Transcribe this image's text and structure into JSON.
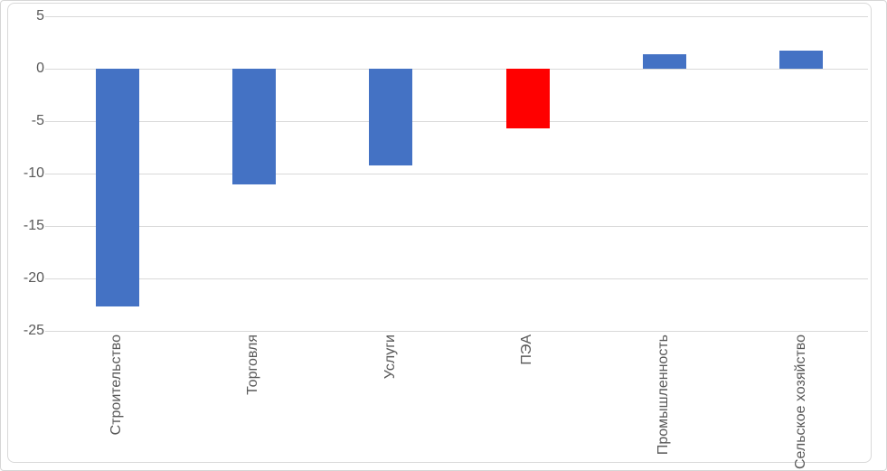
{
  "chart_data": {
    "type": "bar",
    "title": "",
    "xlabel": "",
    "ylabel": "",
    "categories": [
      "Строительство",
      "Торговля",
      "Услуги",
      "ПЭА",
      "Промышленность",
      "Сельское хозяйство"
    ],
    "values": [
      -22.7,
      -11.0,
      -9.2,
      -5.7,
      1.4,
      1.7
    ],
    "bar_colors": [
      "#4472C4",
      "#4472C4",
      "#4472C4",
      "#FF0000",
      "#4472C4",
      "#4472C4"
    ],
    "y_ticks": [
      5,
      0,
      -5,
      -10,
      -15,
      -20,
      -25
    ],
    "ylim": [
      -25,
      5
    ],
    "grid": "horizontal",
    "legend": "none",
    "category_labels_rotation_deg": -90,
    "colors": {
      "bar_default": "#4472C4",
      "bar_highlight": "#FF0000",
      "gridline": "#D9D9D9",
      "axis_text": "#595959",
      "frame_border": "#D9D9D9",
      "background": "#FFFFFF"
    }
  }
}
